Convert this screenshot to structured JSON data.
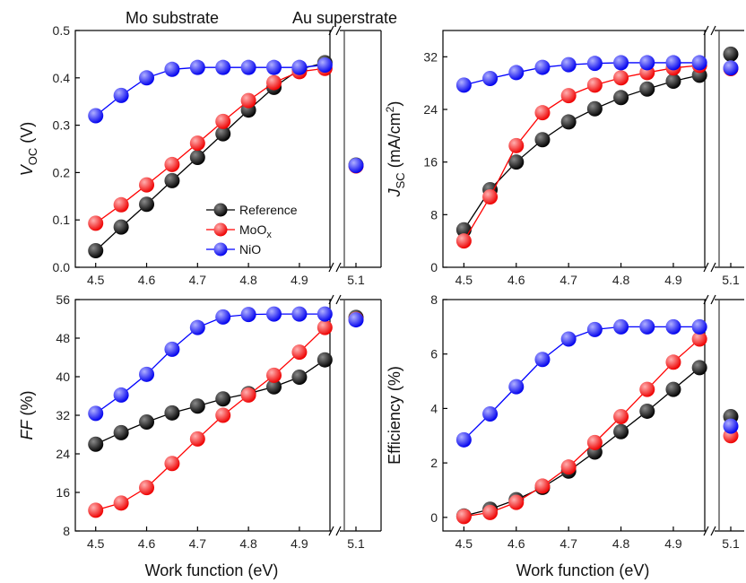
{
  "headers": {
    "left": "Mo substrate",
    "right": "Au superstrate"
  },
  "legend": {
    "entries": [
      "Reference",
      "MoO",
      "NiO"
    ],
    "sub": [
      "",
      "x",
      ""
    ]
  },
  "colors": {
    "Reference": "#000000",
    "MoOx": "#ff0000",
    "NiO": "#0000ff",
    "line": "#000000"
  },
  "chart_data": [
    {
      "type": "line",
      "id": "voc",
      "ylabel_main": "V",
      "ylabel_sub": "OC",
      "ylabel_unit": " (V)",
      "ylim": [
        0.0,
        0.5
      ],
      "yticks": [
        "0.0",
        "0.1",
        "0.2",
        "0.3",
        "0.4",
        "0.5"
      ],
      "xticks": [
        "4.5",
        "4.6",
        "4.7",
        "4.8",
        "4.9"
      ],
      "xticks_right": [
        "5.1"
      ],
      "xlabel": "",
      "x": [
        4.5,
        4.55,
        4.6,
        4.65,
        4.7,
        4.75,
        4.8,
        4.85,
        4.9,
        4.95
      ],
      "series": [
        {
          "name": "Reference",
          "values": [
            0.035,
            0.085,
            0.133,
            0.183,
            0.232,
            0.282,
            0.332,
            0.38,
            0.418,
            0.432
          ],
          "right": 0.216
        },
        {
          "name": "MoOx",
          "values": [
            0.093,
            0.132,
            0.174,
            0.217,
            0.262,
            0.308,
            0.352,
            0.39,
            0.413,
            0.42
          ],
          "right": 0.214
        },
        {
          "name": "NiO",
          "values": [
            0.32,
            0.363,
            0.4,
            0.418,
            0.422,
            0.422,
            0.422,
            0.422,
            0.422,
            0.427
          ],
          "right": 0.215
        }
      ]
    },
    {
      "type": "line",
      "id": "jsc",
      "ylabel_main": "J",
      "ylabel_sub": "SC",
      "ylabel_unit": " (mA/cm",
      "ylabel_sup": "2",
      "ylabel_end": ")",
      "ylim": [
        0,
        36
      ],
      "yticks": [
        "0",
        "8",
        "16",
        "24",
        "32"
      ],
      "xticks": [
        "4.5",
        "4.6",
        "4.7",
        "4.8",
        "4.9"
      ],
      "xticks_right": [
        "5.1"
      ],
      "xlabel": "",
      "x": [
        4.5,
        4.55,
        4.6,
        4.65,
        4.7,
        4.75,
        4.8,
        4.85,
        4.9,
        4.95
      ],
      "series": [
        {
          "name": "Reference",
          "values": [
            5.7,
            11.8,
            16.0,
            19.4,
            22.1,
            24.1,
            25.8,
            27.1,
            28.3,
            29.2
          ],
          "right": 32.4
        },
        {
          "name": "MoOx",
          "values": [
            4.0,
            10.7,
            18.5,
            23.5,
            26.1,
            27.7,
            28.8,
            29.6,
            30.3,
            30.7
          ],
          "right": 30.2
        },
        {
          "name": "NiO",
          "values": [
            27.7,
            28.7,
            29.6,
            30.4,
            30.8,
            31.0,
            31.1,
            31.1,
            31.1,
            31.1
          ],
          "right": 30.3
        }
      ]
    },
    {
      "type": "line",
      "id": "ff",
      "ylabel_main": "FF",
      "ylabel_sub": "",
      "ylabel_unit": " (%)",
      "ylim": [
        8,
        56
      ],
      "yticks": [
        "8",
        "16",
        "24",
        "32",
        "40",
        "48",
        "56"
      ],
      "xticks": [
        "4.5",
        "4.6",
        "4.7",
        "4.8",
        "4.9"
      ],
      "xticks_right": [
        "5.1"
      ],
      "xlabel": "Work function (eV)",
      "x": [
        4.5,
        4.55,
        4.6,
        4.65,
        4.7,
        4.75,
        4.8,
        4.85,
        4.9,
        4.95
      ],
      "series": [
        {
          "name": "Reference",
          "values": [
            26.0,
            28.4,
            30.6,
            32.5,
            33.9,
            35.4,
            36.5,
            37.9,
            39.9,
            43.5
          ],
          "right": 52.3
        },
        {
          "name": "MoOx",
          "values": [
            12.3,
            13.8,
            17.0,
            22.0,
            27.1,
            32.0,
            36.2,
            40.3,
            45.1,
            50.2
          ],
          "right": 51.9
        },
        {
          "name": "NiO",
          "values": [
            32.4,
            36.2,
            40.5,
            45.7,
            50.2,
            52.4,
            52.9,
            53.0,
            53.0,
            53.0
          ],
          "right": 51.8
        }
      ]
    },
    {
      "type": "line",
      "id": "eff",
      "ylabel_main": "Efficiency (%)",
      "ylabel_sub": "",
      "ylabel_unit": "",
      "ylim": [
        -0.5,
        8
      ],
      "yticks": [
        "0",
        "2",
        "4",
        "6",
        "8"
      ],
      "ytick_values": [
        0,
        2,
        4,
        6,
        8
      ],
      "xticks": [
        "4.5",
        "4.6",
        "4.7",
        "4.8",
        "4.9"
      ],
      "xticks_right": [
        "5.1"
      ],
      "xlabel": "Work function (eV)",
      "x": [
        4.5,
        4.55,
        4.6,
        4.65,
        4.7,
        4.75,
        4.8,
        4.85,
        4.9,
        4.95
      ],
      "series": [
        {
          "name": "Reference",
          "values": [
            0.05,
            0.3,
            0.65,
            1.1,
            1.7,
            2.4,
            3.15,
            3.9,
            4.7,
            5.5
          ],
          "right": 3.7
        },
        {
          "name": "MoOx",
          "values": [
            0.03,
            0.18,
            0.55,
            1.15,
            1.85,
            2.75,
            3.7,
            4.7,
            5.7,
            6.55
          ],
          "right": 3.0
        },
        {
          "name": "NiO",
          "values": [
            2.85,
            3.8,
            4.8,
            5.8,
            6.55,
            6.9,
            7.0,
            7.0,
            7.0,
            7.0
          ],
          "right": 3.35
        }
      ]
    }
  ]
}
